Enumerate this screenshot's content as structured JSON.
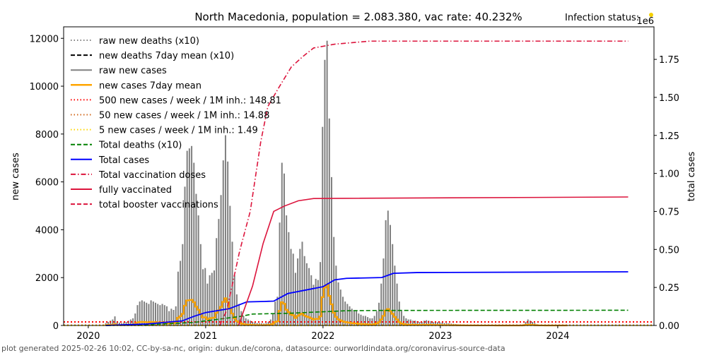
{
  "chart_data": {
    "type": "bar",
    "title": "North Macedonia, population = 2.083.380, vac rate: 40.232%",
    "status_label": "Infection status:",
    "status_color": "#f5d000",
    "right_axis_multiplier": "1e6",
    "xlabel": "",
    "ylabel": "new cases",
    "ylabel_right": "total cases",
    "xlim": [
      2019.79,
      2024.82
    ],
    "ylim": [
      0,
      12480
    ],
    "ylim_right": [
      0,
      1964000
    ],
    "xticks": [
      "2020",
      "2021",
      "2022",
      "2023",
      "2024"
    ],
    "yticks": [
      "0",
      "2000",
      "4000",
      "6000",
      "8000",
      "10000",
      "12000"
    ],
    "yticks_right": [
      "0.00",
      "0.25",
      "0.50",
      "0.75",
      "1.00",
      "1.25",
      "1.50",
      "1.75"
    ],
    "legend_position": "top-left",
    "legend": [
      {
        "label": "raw new deaths (x10)",
        "color": "#808080",
        "style": "dotted"
      },
      {
        "label": "new deaths 7day mean (x10)",
        "color": "#000000",
        "style": "dashed"
      },
      {
        "label": "raw new cases",
        "color": "#808080",
        "style": "solid"
      },
      {
        "label": "new cases 7day mean",
        "color": "#ffa500",
        "style": "solid"
      },
      {
        "label": "500 new cases / week / 1M inh.: 148.81",
        "color": "#ff0000",
        "style": "dotted"
      },
      {
        "label": "50 new cases / week / 1M inh.: 14.88",
        "color": "#d2691e",
        "style": "dotted"
      },
      {
        "label": "5 new cases / week / 1M inh.: 1.49",
        "color": "#ffd700",
        "style": "dotted"
      },
      {
        "label": "Total deaths (x10)",
        "color": "#008000",
        "style": "dashed"
      },
      {
        "label": "Total cases",
        "color": "#0000ff",
        "style": "solid"
      },
      {
        "label": "Total vaccination doses",
        "color": "#dc143c",
        "style": "dashdot"
      },
      {
        "label": "fully vaccinated",
        "color": "#dc143c",
        "style": "solid"
      },
      {
        "label": "total booster vaccinations",
        "color": "#dc143c",
        "style": "dashed"
      }
    ],
    "thresholds": [
      148.81,
      14.88,
      1.49
    ],
    "raw_new_cases": {
      "start_year": 2020.15,
      "step_weeks": 1,
      "values": [
        100,
        150,
        200,
        250,
        380,
        150,
        120,
        100,
        120,
        150,
        200,
        250,
        300,
        500,
        850,
        1000,
        1050,
        1000,
        950,
        900,
        1050,
        1000,
        950,
        900,
        850,
        900,
        850,
        800,
        600,
        700,
        650,
        800,
        2250,
        2700,
        3400,
        5800,
        7300,
        7400,
        7500,
        6800,
        5500,
        4600,
        3400,
        2350,
        2400,
        1750,
        2100,
        2200,
        2300,
        3650,
        4450,
        5450,
        6900,
        7950,
        6850,
        5000,
        3500,
        2100,
        1300,
        900,
        600,
        400,
        300,
        250,
        200,
        150,
        120,
        100,
        100,
        90,
        80,
        100,
        150,
        250,
        500,
        1000,
        1200,
        4300,
        6800,
        6350,
        4600,
        3900,
        3200,
        3000,
        2200,
        2800,
        3200,
        3500,
        2900,
        2600,
        2400,
        2100,
        1700,
        1950,
        1900,
        2650,
        8300,
        11100,
        11900,
        8650,
        6200,
        3700,
        2500,
        1800,
        1500,
        1200,
        1000,
        900,
        800,
        700,
        600,
        600,
        500,
        450,
        400,
        400,
        350,
        300,
        300,
        400,
        600,
        950,
        1750,
        2800,
        4400,
        4800,
        4200,
        3400,
        2500,
        1750,
        1000,
        600,
        400,
        300,
        250,
        250,
        200,
        200,
        180,
        150,
        150,
        200,
        220,
        200,
        180,
        150,
        150,
        140,
        130,
        120,
        100,
        100,
        90,
        80,
        70,
        60,
        50,
        50,
        40,
        40,
        30,
        30,
        25,
        20,
        20,
        15,
        15,
        10,
        10,
        10,
        10,
        10,
        10,
        5,
        5,
        5,
        5,
        5,
        5,
        5,
        5,
        5,
        5,
        5,
        5,
        50,
        150,
        250,
        200,
        150,
        100,
        50,
        20,
        10,
        10,
        5,
        5,
        5,
        5,
        5,
        5,
        5,
        5,
        5,
        5
      ]
    },
    "total_cases": [
      [
        2020.15,
        0
      ],
      [
        2020.5,
        10000
      ],
      [
        2020.8,
        30000
      ],
      [
        2020.9,
        60000
      ],
      [
        2021.0,
        85000
      ],
      [
        2021.2,
        110000
      ],
      [
        2021.35,
        155000
      ],
      [
        2021.5,
        158000
      ],
      [
        2021.58,
        160000
      ],
      [
        2021.7,
        210000
      ],
      [
        2021.9,
        240000
      ],
      [
        2022.0,
        255000
      ],
      [
        2022.1,
        300000
      ],
      [
        2022.2,
        310000
      ],
      [
        2022.5,
        315000
      ],
      [
        2022.6,
        343000
      ],
      [
        2022.8,
        348000
      ],
      [
        2024.6,
        353000
      ]
    ],
    "total_deaths_x10": [
      [
        2020.15,
        0
      ],
      [
        2020.5,
        5000
      ],
      [
        2020.9,
        20000
      ],
      [
        2021.0,
        30000
      ],
      [
        2021.3,
        60000
      ],
      [
        2021.4,
        75000
      ],
      [
        2021.7,
        80000
      ],
      [
        2022.0,
        90000
      ],
      [
        2022.2,
        97000
      ],
      [
        2022.5,
        99000
      ],
      [
        2024.6,
        100000
      ]
    ],
    "total_vaccination_doses": [
      [
        2021.12,
        0
      ],
      [
        2021.18,
        100000
      ],
      [
        2021.29,
        490000
      ],
      [
        2021.38,
        750000
      ],
      [
        2021.47,
        1210000
      ],
      [
        2021.53,
        1440000
      ],
      [
        2021.62,
        1560000
      ],
      [
        2021.73,
        1700000
      ],
      [
        2021.83,
        1770000
      ],
      [
        2021.92,
        1825000
      ],
      [
        2022.1,
        1850000
      ],
      [
        2022.4,
        1870000
      ],
      [
        2024.6,
        1870000
      ]
    ],
    "fully_vaccinated": [
      [
        2021.28,
        0
      ],
      [
        2021.4,
        260000
      ],
      [
        2021.49,
        540000
      ],
      [
        2021.58,
        750000
      ],
      [
        2021.67,
        785000
      ],
      [
        2021.79,
        820000
      ],
      [
        2021.92,
        835000
      ],
      [
        2024.6,
        845000
      ]
    ]
  },
  "footer": "plot generated 2025-02-26 10:02, CC-by-sa-nc, origin: dukun.de/corona, datasource: ourworldindata.org/coronavirus-source-data"
}
